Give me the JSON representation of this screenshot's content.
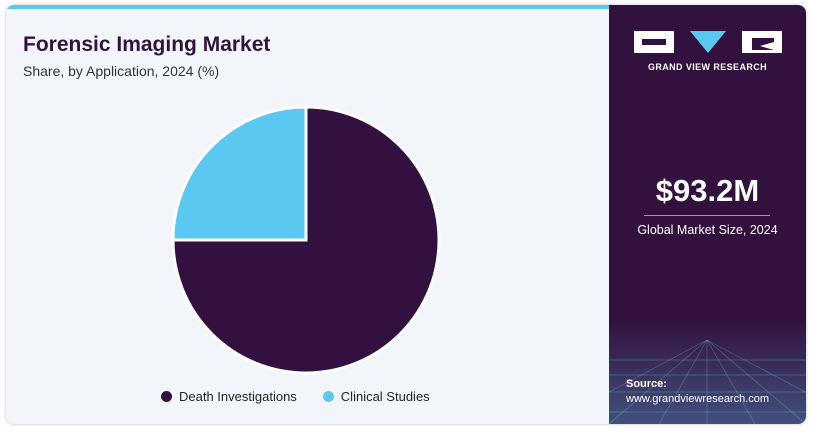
{
  "title": "Forensic Imaging Market",
  "subtitle": "Share, by Application, 2024 (%)",
  "chart_data": {
    "type": "pie",
    "title": "Forensic Imaging Market",
    "subtitle": "Share, by Application, 2024 (%)",
    "slices": [
      {
        "label": "Death Investigations",
        "value": 75,
        "color": "#32103f"
      },
      {
        "label": "Clinical Studies",
        "value": 25,
        "color": "#5bc8f2"
      }
    ],
    "legend_position": "bottom"
  },
  "sidebar": {
    "brand": "GRAND VIEW RESEARCH",
    "market_size": "$93.2M",
    "market_size_label": "Global Market Size, 2024",
    "source_heading": "Source:",
    "source_url": "www.grandviewresearch.com"
  },
  "colors": {
    "panel": "#33113f",
    "accent": "#5bc8ef",
    "background": "#f2f6fa"
  }
}
